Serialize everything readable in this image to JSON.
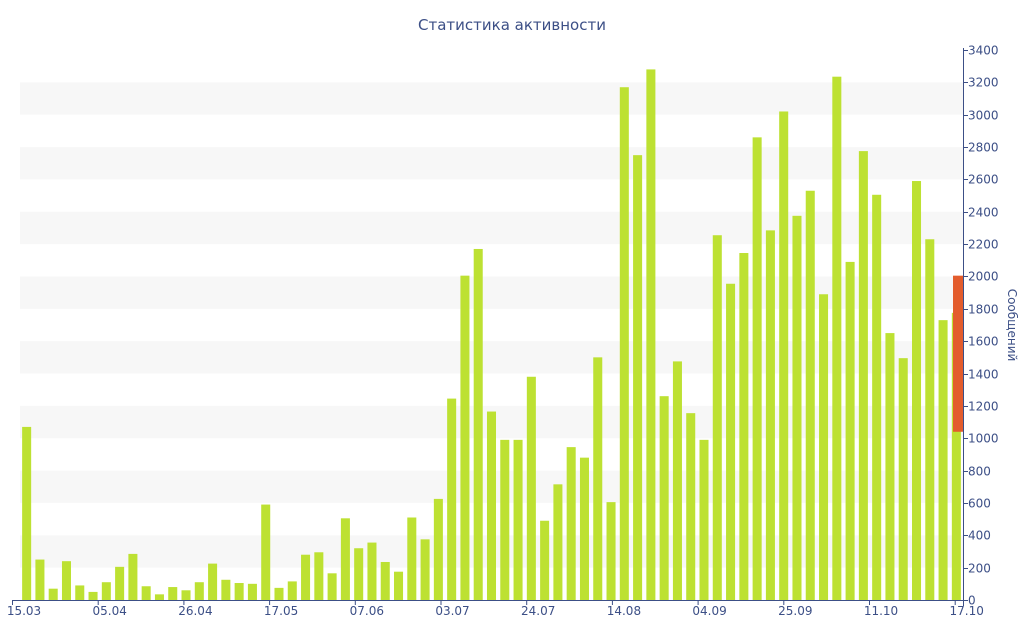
{
  "chart_data": {
    "type": "bar",
    "title": "Статистика активности",
    "xlabel": "",
    "ylabel": "Сообщений",
    "ylim": [
      0,
      3400
    ],
    "y_ticks": [
      0,
      200,
      400,
      600,
      800,
      1000,
      1200,
      1400,
      1600,
      1800,
      2000,
      2200,
      2400,
      2600,
      2800,
      3000,
      3200,
      3400
    ],
    "x_tick_labels": [
      {
        "index": 0,
        "label": "15.03"
      },
      {
        "index": 3,
        "label": "05.04"
      },
      {
        "index": 6,
        "label": "26.04"
      },
      {
        "index": 9,
        "label": "17.05"
      },
      {
        "index": 12,
        "label": "07.06"
      },
      {
        "index": 15,
        "label": "03.07"
      },
      {
        "index": 18,
        "label": "24.07"
      },
      {
        "index": 21,
        "label": "14.08"
      },
      {
        "index": 24,
        "label": "04.09"
      },
      {
        "index": 27,
        "label": "25.09"
      },
      {
        "index": 30,
        "label": "11.10"
      },
      {
        "index": 33,
        "label": "17.10"
      }
    ],
    "grid": true,
    "colors": {
      "bar": "#bde132",
      "highlight": "#e35c2d",
      "axis": "#3c4f86",
      "band": "#f7f7f7"
    },
    "series": [
      {
        "name": "Сообщений",
        "values": [
          1070,
          250,
          70,
          240,
          90,
          50,
          110,
          205,
          285,
          85,
          35,
          80,
          60,
          110,
          225,
          125,
          105,
          100,
          590,
          75,
          115,
          280,
          295,
          165,
          505,
          320,
          355,
          235,
          175,
          510,
          375,
          625,
          1245,
          2005,
          2170,
          1165,
          990,
          990,
          1380,
          490,
          715,
          945,
          880,
          1500,
          605,
          3170,
          2750,
          3280,
          1260,
          1475,
          1155,
          990,
          2255,
          1955,
          2145,
          2860,
          2285,
          3020,
          2375,
          2530,
          1890,
          3235,
          2090,
          2775,
          2505,
          1650,
          1495,
          2590,
          2230,
          1730,
          1775
        ]
      }
    ],
    "highlight_range": [
      1040,
      2005
    ]
  }
}
